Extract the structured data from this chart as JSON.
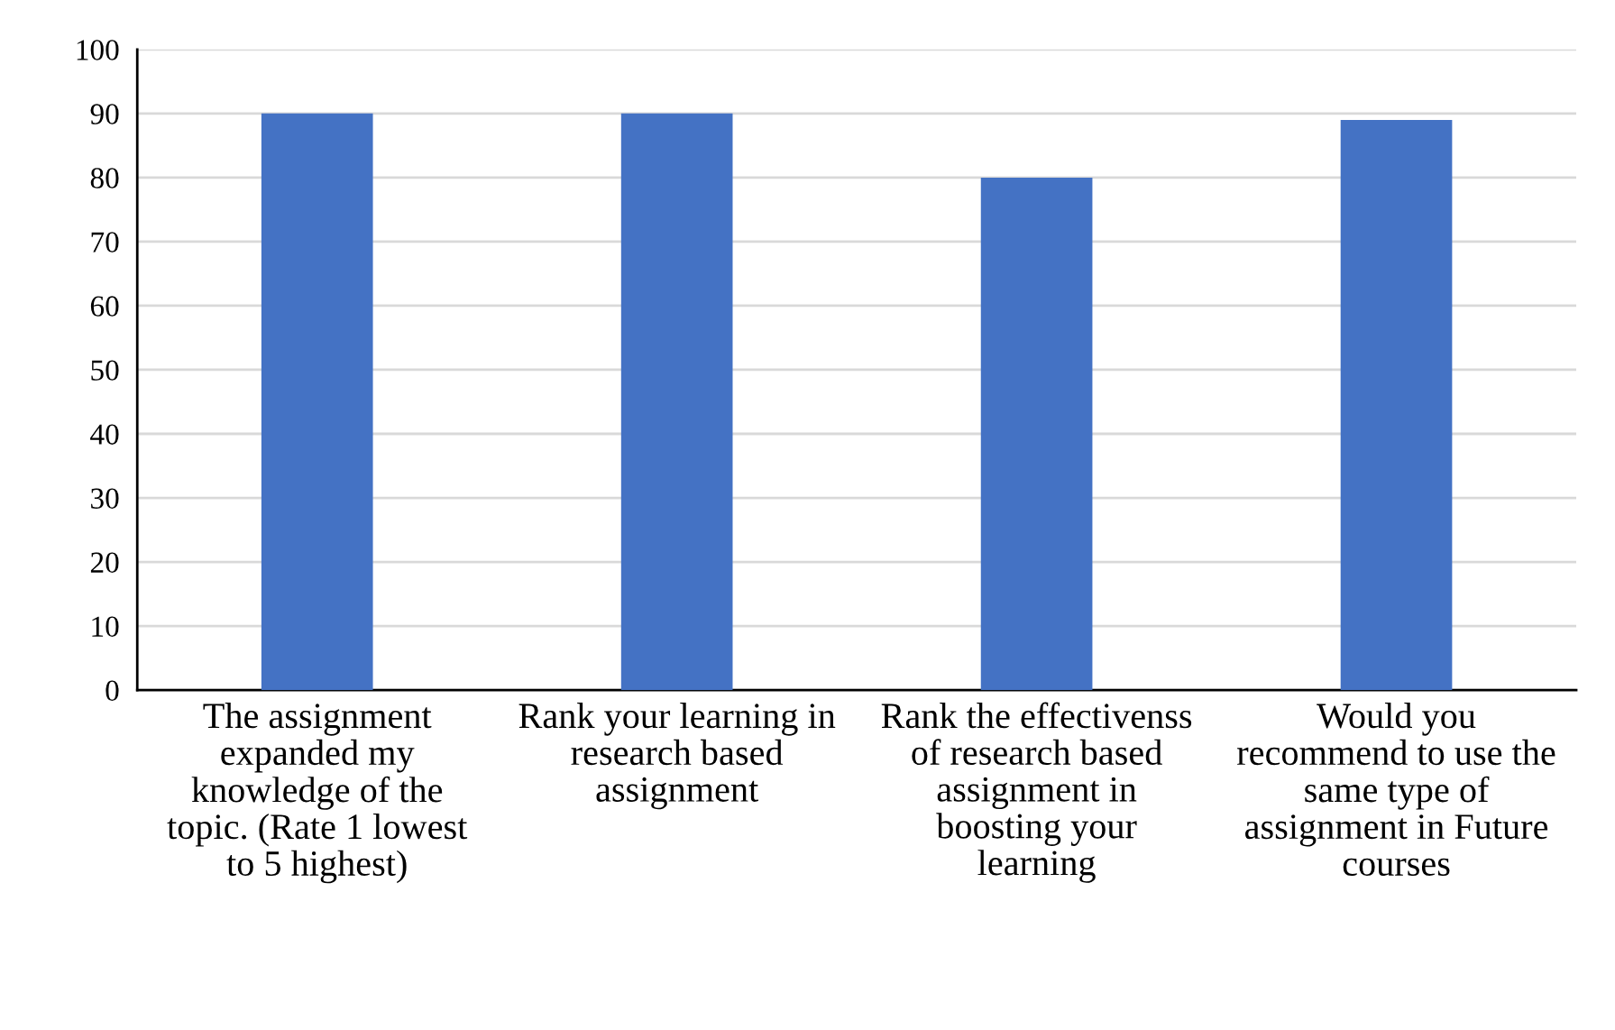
{
  "chart_data": {
    "type": "bar",
    "categories": [
      "The assignment expanded my knowledge of the topic. (Rate 1 lowest to 5 highest)",
      "Rank your learning in research based assignment",
      "Rank the effectivenss of research based assignment in boosting your learning",
      "Would you recommend to use the same type of assignment in Future courses"
    ],
    "values": [
      90,
      90,
      80,
      89
    ],
    "color": "#4472c4",
    "ylim": [
      0,
      100
    ],
    "yticks": [
      0,
      10,
      20,
      30,
      40,
      50,
      60,
      70,
      80,
      90,
      100
    ],
    "grid": "y",
    "legend": false
  }
}
